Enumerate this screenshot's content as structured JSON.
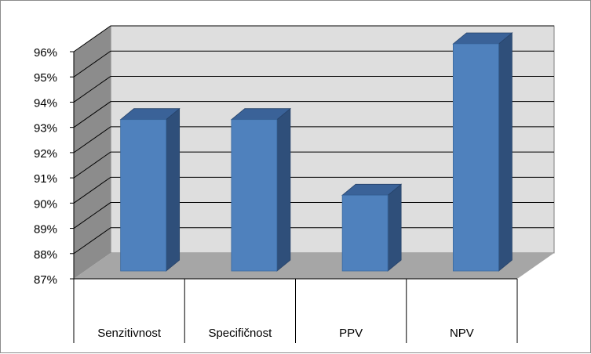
{
  "chart_data": {
    "type": "bar",
    "style": "3d-column",
    "title": "",
    "xlabel": "",
    "ylabel": "",
    "categories": [
      "Senzitivnost",
      "Specifičnost",
      "PPV",
      "NPV"
    ],
    "series": [
      {
        "name": "",
        "values": [
          93,
          93,
          90,
          96
        ]
      }
    ],
    "ylim": [
      87,
      96
    ],
    "yticks": [
      "87%",
      "88%",
      "89%",
      "90%",
      "91%",
      "92%",
      "93%",
      "94%",
      "95%",
      "96%"
    ],
    "grid": true,
    "legend": "none"
  },
  "colors": {
    "bar_front": "#4f81bd",
    "bar_side": "#2f4f7a",
    "bar_top": "#3a6298",
    "back_wall": "#dedede",
    "side_wall": "#8c8c8c",
    "floor": "#a6a6a6",
    "grid": "#000000"
  }
}
